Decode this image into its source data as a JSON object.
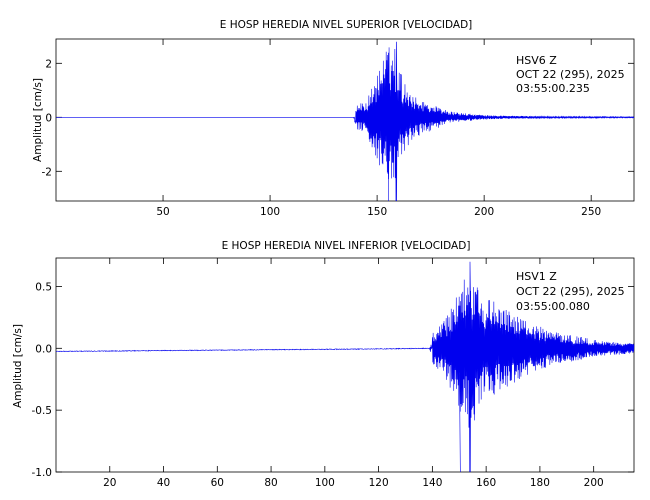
{
  "chart_data": [
    {
      "type": "line",
      "title": "E HOSP HEREDIA NIVEL SUPERIOR [VELOCIDAD]",
      "ylabel": "Amplitud [cm/s]",
      "xlabel": "",
      "xlim": [
        0,
        270
      ],
      "ylim": [
        -3.1,
        2.9
      ],
      "xticks": [
        50,
        100,
        150,
        200,
        250
      ],
      "yticks": [
        2,
        0,
        -2
      ],
      "grid": false,
      "annotation": {
        "station": "HSV6   Z",
        "date": "OCT 22 (295), 2025",
        "time": "03:55:00.235"
      },
      "series": [
        {
          "color": "#0000ee",
          "onset": 140,
          "peak_x": 159,
          "peak_positive": 2.8,
          "peak_negative": -3.1,
          "envelope": [
            [
              0,
              0.0
            ],
            [
              139,
              0.0
            ],
            [
              140,
              0.45
            ],
            [
              145,
              0.6
            ],
            [
              150,
              1.6
            ],
            [
              154,
              2.5
            ],
            [
              158,
              2.8
            ],
            [
              162,
              1.4
            ],
            [
              168,
              0.75
            ],
            [
              175,
              0.5
            ],
            [
              185,
              0.2
            ],
            [
              200,
              0.08
            ],
            [
              230,
              0.03
            ],
            [
              270,
              0.02
            ]
          ]
        }
      ]
    },
    {
      "type": "line",
      "title": "E HOSP HEREDIA NIVEL INFERIOR [VELOCIDAD]",
      "ylabel": "Amplitud  [cm/s]",
      "xlabel": "",
      "xlim": [
        0,
        215
      ],
      "ylim": [
        -1.0,
        0.73
      ],
      "xticks": [
        20,
        40,
        60,
        80,
        100,
        120,
        140,
        160,
        180,
        200
      ],
      "yticks": [
        0.5,
        0.0,
        -0.5,
        -1.0
      ],
      "ytick_labels": [
        "0.5",
        "0.0",
        "-0.5",
        "-1.0"
      ],
      "grid": false,
      "annotation": {
        "station": "HSV1   Z",
        "date": "OCT 22 (295), 2025",
        "time": "03:55:00.080"
      },
      "series": [
        {
          "color": "#0000ee",
          "onset": 140,
          "peak_x": 154,
          "peak_positive": 0.7,
          "peak_negative": -1.0,
          "baseline": [
            [
              0,
              -0.025
            ],
            [
              60,
              -0.015
            ],
            [
              120,
              -0.005
            ],
            [
              140,
              0.0
            ]
          ],
          "envelope": [
            [
              0,
              0.003
            ],
            [
              139,
              0.003
            ],
            [
              140,
              0.12
            ],
            [
              145,
              0.25
            ],
            [
              150,
              0.5
            ],
            [
              154,
              0.7
            ],
            [
              158,
              0.45
            ],
            [
              165,
              0.35
            ],
            [
              175,
              0.22
            ],
            [
              185,
              0.14
            ],
            [
              200,
              0.07
            ],
            [
              215,
              0.04
            ]
          ]
        }
      ]
    }
  ]
}
